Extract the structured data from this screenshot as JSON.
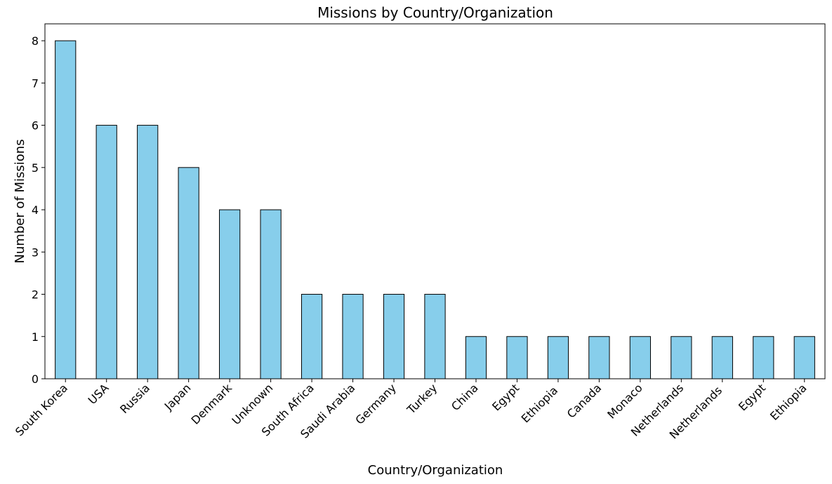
{
  "chart_data": {
    "type": "bar",
    "title": "Missions by Country/Organization",
    "xlabel": "Country/Organization",
    "ylabel": "Number of Missions",
    "categories": [
      "South Korea",
      "USA",
      "Russia",
      "Japan",
      "Denmark",
      "Unknown",
      "South Africa",
      "Saudi Arabia",
      "Germany",
      "Turkey",
      "China",
      "Egypt",
      "Ethiopia ",
      "Canada",
      "Monaco",
      "Netherlands",
      "Netherlands ",
      "Egypt",
      "Ethiopia"
    ],
    "values": [
      8,
      6,
      6,
      5,
      4,
      4,
      2,
      2,
      2,
      2,
      1,
      1,
      1,
      1,
      1,
      1,
      1,
      1,
      1
    ],
    "ylim": [
      0,
      8.4
    ],
    "yticks": [
      0,
      1,
      2,
      3,
      4,
      5,
      6,
      7,
      8
    ],
    "grid": false,
    "legend": "none",
    "colors": {
      "bar_fill": "#87CEEB",
      "bar_edge": "#000000",
      "axis": "#000000",
      "text": "#000000"
    }
  }
}
